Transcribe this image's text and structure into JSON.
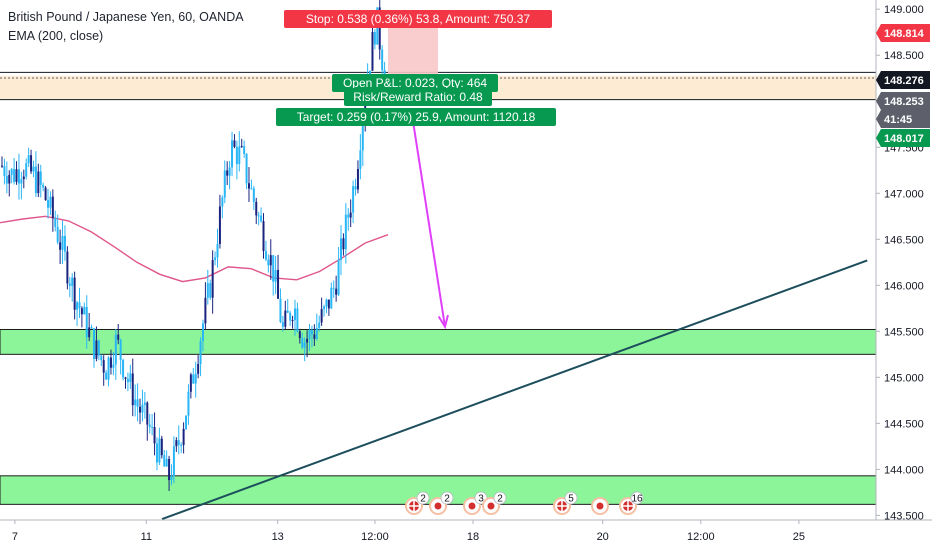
{
  "header": {
    "symbol_line": "British Pound / Japanese Yen, 60, OANDA",
    "indicator_line": "EMA (200, close)"
  },
  "colors": {
    "candle": "#29b6f6",
    "candle_dark": "#1a237e",
    "ema": "#e0568b",
    "trendline": "#1d4e5c",
    "zone_fill": "#8cf59a",
    "entry_zone_fill": "#fdebd3",
    "arrow": "#e040fb",
    "stop_red": "#f23645",
    "target_green": "#089950",
    "axis_text": "#131722",
    "tag_dark": "#131722",
    "tag_gray": "#5d606b"
  },
  "position": {
    "stop_label": "Stop: 0.538 (0.36%) 53.8, Amount: 750.37",
    "open_label": "Open P&L: 0.023, Qty: 464",
    "rr_label": "Risk/Reward Ratio: 0.48",
    "target_label": "Target: 0.259 (0.17%) 25.9, Amount: 1120.18"
  },
  "price_tags": [
    {
      "text": "148.814",
      "style": "red"
    },
    {
      "text": "148.276",
      "style": "dark"
    },
    {
      "text": "148.253",
      "style": "gray"
    },
    {
      "text": "41:45",
      "style": "gray"
    },
    {
      "text": "148.017",
      "style": "green"
    }
  ],
  "event_badges": [
    {
      "type": "flag",
      "num": "2"
    },
    {
      "type": "dot",
      "num": "2"
    },
    {
      "type": "dot",
      "num": "3"
    },
    {
      "type": "dot",
      "num": "2"
    },
    {
      "type": "flag",
      "num": "5"
    },
    {
      "type": "dot",
      "num": ""
    },
    {
      "type": "flag",
      "num": "16"
    }
  ],
  "chart_data": {
    "type": "candlestick",
    "title": "British Pound / Japanese Yen, 60, OANDA",
    "y_ticks": [
      "149.000",
      "148.500",
      "148.000",
      "147.500",
      "147.000",
      "146.500",
      "146.000",
      "145.500",
      "145.000",
      "144.500",
      "144.000",
      "143.500"
    ],
    "x_ticks": [
      "7",
      "11",
      "13",
      "12:00",
      "18",
      "20",
      "12:00",
      "25"
    ],
    "ylim": [
      143.45,
      149.1
    ],
    "price_close": [
      147.3,
      147.2,
      147.3,
      147.2,
      147.0,
      146.7,
      146.3,
      145.9,
      145.6,
      145.3,
      145.1,
      145.4,
      145.0,
      144.7,
      144.5,
      144.2,
      143.9,
      144.3,
      144.8,
      145.4,
      146.0,
      146.8,
      147.5,
      147.4,
      147.0,
      146.6,
      146.2,
      145.5,
      145.8,
      145.4,
      145.5,
      145.7,
      146.0,
      146.6,
      147.2,
      148.2,
      148.9,
      148.1
    ],
    "ema_200": [
      146.68,
      146.72,
      146.75,
      146.7,
      146.58,
      146.42,
      146.25,
      146.12,
      146.04,
      146.08,
      146.2,
      146.18,
      146.08,
      146.06,
      146.15,
      146.3,
      146.46,
      146.55
    ],
    "zones": [
      {
        "from": 145.25,
        "to": 145.52
      },
      {
        "from": 143.62,
        "to": 143.93
      }
    ],
    "entry_zone": {
      "from": 148.017,
      "to": 148.276
    },
    "stop_zone": {
      "from": 148.276,
      "to": 148.814
    },
    "trendline": {
      "from": [
        0.185,
        143.46
      ],
      "to": [
        0.99,
        146.27
      ]
    },
    "arrow": {
      "from": [
        0.472,
        147.75
      ],
      "to": [
        0.508,
        145.55
      ]
    },
    "hlines": [
      148.314,
      148.253
    ]
  }
}
